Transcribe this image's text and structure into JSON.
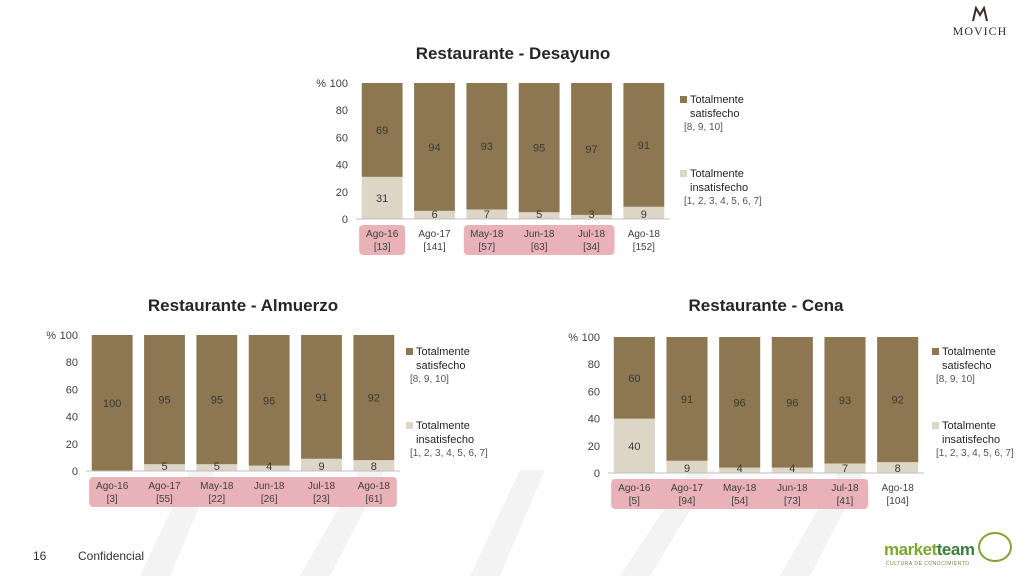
{
  "logo": {
    "name": "MOVICH",
    "mark": "M"
  },
  "footer": {
    "page_number": "16",
    "confidential": "Confidencial"
  },
  "brand": {
    "name_a": "market",
    "name_b": "team",
    "tagline": "CULTURA DE CONOCIMIENTO"
  },
  "colors": {
    "satisfied": "#8c7750",
    "dissatisfied": "#ddd5c5",
    "highlight": "#e8b2b8",
    "baseline": "#bfbfbf"
  },
  "chart_data": [
    {
      "type": "bar",
      "stacked": true,
      "title": "Restaurante - Desayuno",
      "ylabel": "%",
      "ylim": [
        0,
        100
      ],
      "yticks": [
        0,
        20,
        40,
        60,
        80,
        100
      ],
      "grid": false,
      "legend_position": "right",
      "categories": [
        "Ago-16",
        "Ago-17",
        "May-18",
        "Jun-18",
        "Jul-18",
        "Ago-18"
      ],
      "category_counts": [
        "[13]",
        "[141]",
        "[57]",
        "[63]",
        "[34]",
        "[152]"
      ],
      "highlighted": [
        true,
        false,
        true,
        true,
        true,
        false
      ],
      "series": [
        {
          "name": "Totalmente insatisfecho",
          "note": "[1, 2, 3, 4, 5, 6, 7]",
          "values": [
            31,
            6,
            7,
            5,
            3,
            9
          ]
        },
        {
          "name": "Totalmente satisfecho",
          "note": "[8, 9, 10]",
          "values": [
            69,
            94,
            93,
            95,
            97,
            91
          ]
        }
      ]
    },
    {
      "type": "bar",
      "stacked": true,
      "title": "Restaurante - Almuerzo",
      "ylabel": "%",
      "ylim": [
        0,
        100
      ],
      "yticks": [
        0,
        20,
        40,
        60,
        80,
        100
      ],
      "grid": false,
      "legend_position": "right",
      "categories": [
        "Ago-16",
        "Ago-17",
        "May-18",
        "Jun-18",
        "Jul-18",
        "Ago-18"
      ],
      "category_counts": [
        "[3]",
        "[55]",
        "[22]",
        "[26]",
        "[23]",
        "[61]"
      ],
      "highlighted": [
        true,
        true,
        true,
        true,
        true,
        true
      ],
      "series": [
        {
          "name": "Totalmente insatisfecho",
          "note": "[1, 2, 3, 4, 5, 6, 7]",
          "values": [
            0,
            5,
            5,
            4,
            9,
            8
          ]
        },
        {
          "name": "Totalmente satisfecho",
          "note": "[8, 9, 10]",
          "values": [
            100,
            95,
            95,
            96,
            91,
            92
          ]
        }
      ]
    },
    {
      "type": "bar",
      "stacked": true,
      "title": "Restaurante - Cena",
      "ylabel": "%",
      "ylim": [
        0,
        100
      ],
      "yticks": [
        0,
        20,
        40,
        60,
        80,
        100
      ],
      "grid": false,
      "legend_position": "right",
      "categories": [
        "Ago-16",
        "Ago-17",
        "May-18",
        "Jun-18",
        "Jul-18",
        "Ago-18"
      ],
      "category_counts": [
        "[5]",
        "[94]",
        "[54]",
        "[73]",
        "[41]",
        "[104]"
      ],
      "highlighted": [
        true,
        true,
        true,
        true,
        true,
        false
      ],
      "series": [
        {
          "name": "Totalmente insatisfecho",
          "note": "[1, 2, 3, 4, 5, 6, 7]",
          "values": [
            40,
            9,
            4,
            4,
            7,
            8
          ]
        },
        {
          "name": "Totalmente satisfecho",
          "note": "[8, 9, 10]",
          "values": [
            60,
            91,
            96,
            96,
            93,
            92
          ]
        }
      ]
    }
  ]
}
